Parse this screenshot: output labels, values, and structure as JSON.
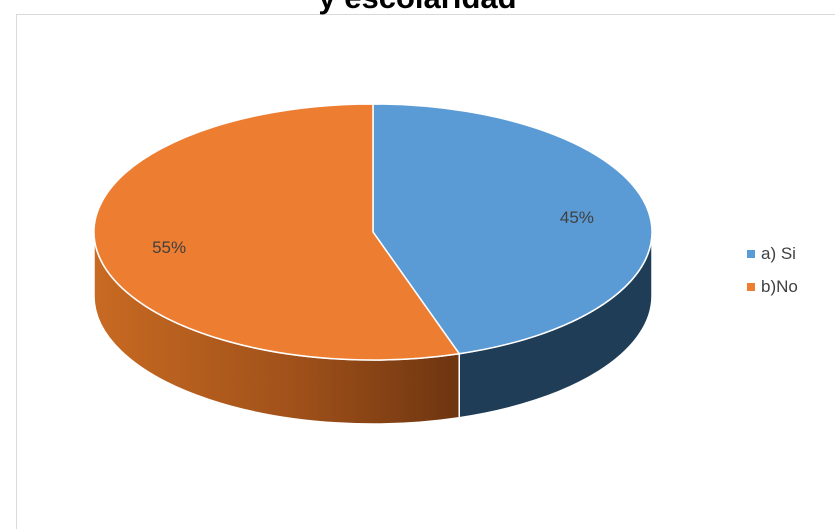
{
  "chart_data": {
    "type": "pie",
    "title": "y escolaridad",
    "categories": [
      "a) Si",
      "b)No"
    ],
    "values": [
      45,
      55
    ],
    "labels": [
      "45%",
      "55%"
    ],
    "colors": [
      "#5b9bd5",
      "#ed7d31"
    ],
    "side_colors": [
      "#203d57",
      "#a3531a"
    ],
    "legend_position": "right",
    "style": "3d-tilted"
  }
}
